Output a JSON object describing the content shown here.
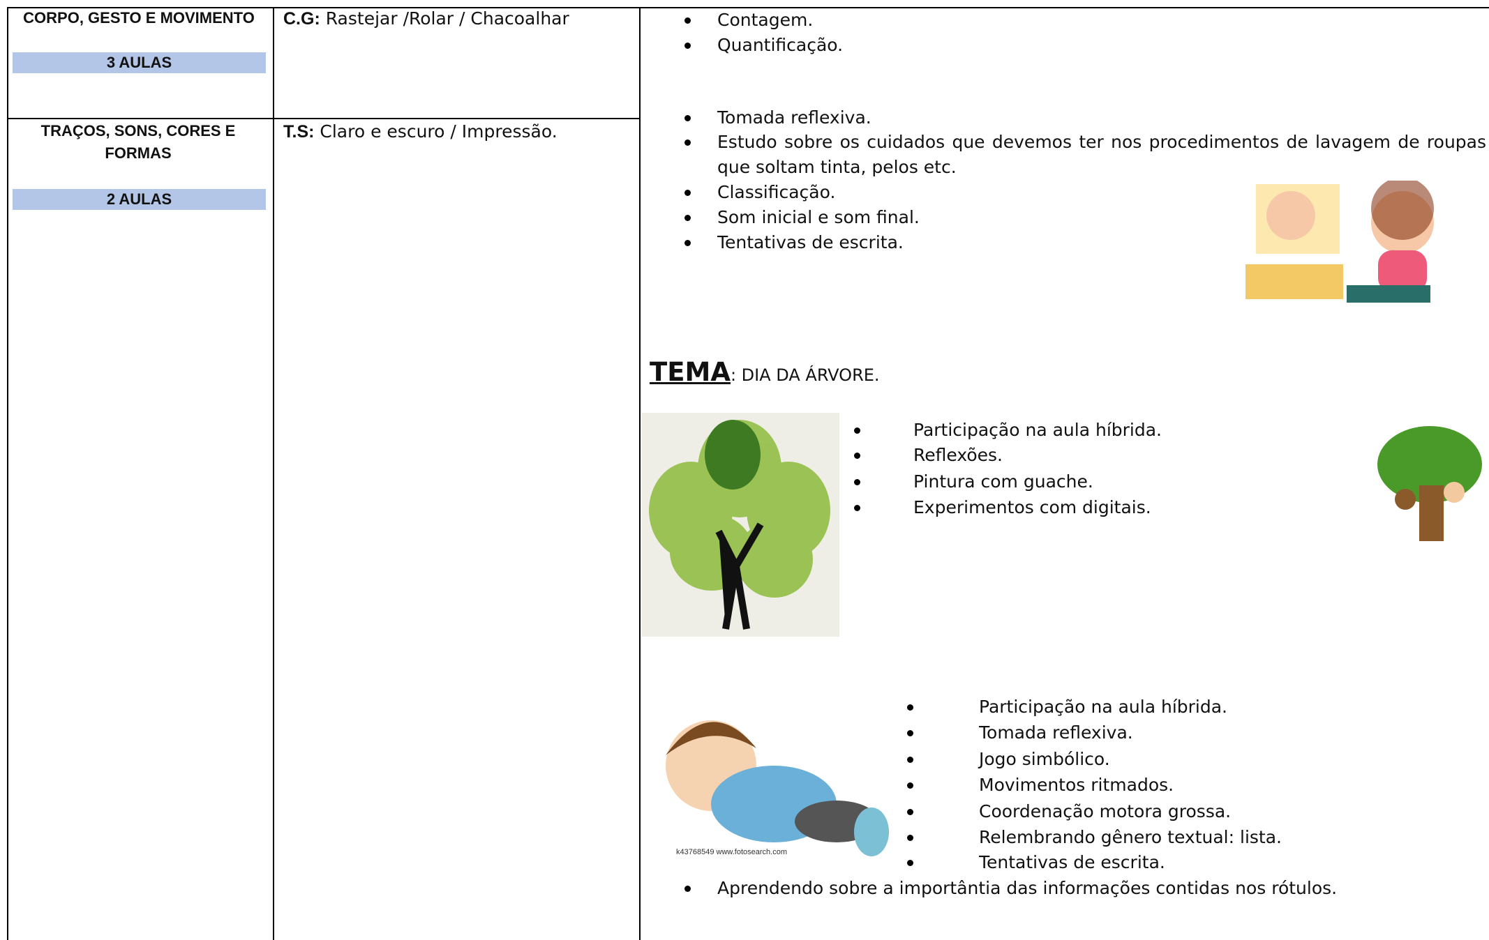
{
  "table": {
    "rows": [
      {
        "title": "CORPO, GESTO E MOVIMENTO",
        "aulas": "3 AULAS",
        "label": "C.G:",
        "text": " Rastejar /Rolar / Chacoalhar"
      },
      {
        "title": "TRAÇOS, SONS, CORES E FORMAS",
        "aulas": "2 AULAS",
        "label": "T.S:",
        "text": " Claro e escuro / Impressão."
      }
    ]
  },
  "content": {
    "list1": [
      "Contagem.",
      "Quantificação."
    ],
    "list2": [
      "Tomada reflexiva.",
      "Estudo sobre os cuidados que devemos ter nos procedimentos de lavagem de roupas que soltam tinta, pelos etc.",
      "Classificação.",
      "Som inicial e som final.",
      "Tentativas de escrita."
    ],
    "tema": {
      "label": "TEMA",
      "text": ": DIA DA ÁRVORE."
    },
    "list3": [
      "Participação na aula híbrida.",
      "Reflexões.",
      "Pintura com guache.",
      "Experimentos com digitais."
    ],
    "list4": [
      "Participação na aula híbrida.",
      "Tomada reflexiva.",
      "Jogo simbólico.",
      "Movimentos ritmados.",
      "Coordenação motora grossa.",
      "Relembrando gênero textual: lista.",
      "Tentativas de escrita."
    ],
    "list5": [
      "Aprendendo sobre a importântia das informações contidas nos rótulos."
    ],
    "image_caption": "k43768549 www.fotosearch.com"
  }
}
